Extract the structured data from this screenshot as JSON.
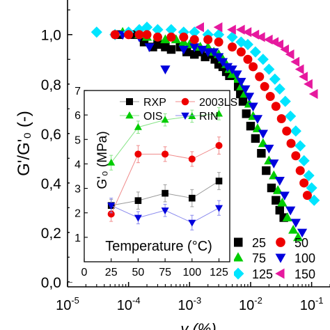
{
  "chart_data": [
    {
      "type": "scatter",
      "xlabel": "γ (%)",
      "ylabel": "G'/G'₀ (-)",
      "xscale": "log",
      "xlim": [
        1e-05,
        0.2
      ],
      "ylim": [
        -0.02,
        1.14
      ],
      "xticks": [
        1e-05,
        0.0001,
        0.001,
        0.01,
        0.1
      ],
      "xtick_labels": [
        {
          "base": "10",
          "exp": "-5"
        },
        {
          "base": "10",
          "exp": "-4"
        },
        {
          "base": "10",
          "exp": "-3"
        },
        {
          "base": "10",
          "exp": "-2"
        },
        {
          "base": "10",
          "exp": "-1"
        }
      ],
      "yticks": [
        0.0,
        0.2,
        0.4,
        0.6,
        0.8,
        1.0
      ],
      "ytick_labels": [
        "0,0",
        "0,2",
        "0,4",
        "0,6",
        "0,8",
        "1,0"
      ],
      "legend_placement": "bottom-right",
      "series": [
        {
          "name": "25",
          "marker": "square",
          "color": "#000000",
          "points": [
            [
              7e-05,
              1.0
            ],
            [
              0.00012,
              1.0
            ],
            [
              0.00018,
              0.97
            ],
            [
              0.00025,
              0.95
            ],
            [
              0.0003,
              0.96
            ],
            [
              0.0004,
              0.95
            ],
            [
              0.0005,
              0.94
            ],
            [
              0.0007,
              0.95
            ],
            [
              0.0009,
              0.93
            ],
            [
              0.0012,
              0.92
            ],
            [
              0.0015,
              0.93
            ],
            [
              0.0018,
              0.91
            ],
            [
              0.0022,
              0.92
            ],
            [
              0.0026,
              0.9
            ],
            [
              0.003,
              0.88
            ],
            [
              0.0035,
              0.87
            ],
            [
              0.004,
              0.85
            ],
            [
              0.0045,
              0.83
            ],
            [
              0.005,
              0.82
            ],
            [
              0.0055,
              0.81
            ],
            [
              0.006,
              0.79
            ],
            [
              0.0068,
              0.76
            ],
            [
              0.0075,
              0.73
            ],
            [
              0.0085,
              0.68
            ],
            [
              0.01,
              0.63
            ],
            [
              0.012,
              0.58
            ],
            [
              0.015,
              0.52
            ],
            [
              0.018,
              0.45
            ],
            [
              0.022,
              0.38
            ],
            [
              0.026,
              0.33
            ],
            [
              0.03,
              0.29
            ],
            [
              0.035,
              0.26
            ]
          ]
        },
        {
          "name": "75",
          "marker": "triangle-up",
          "color": "#00cc00",
          "points": [
            [
              8e-05,
              1.01
            ],
            [
              0.00015,
              1.0
            ],
            [
              0.0002,
              0.99
            ],
            [
              0.0003,
              0.99
            ],
            [
              0.0004,
              0.98
            ],
            [
              0.0006,
              0.98
            ],
            [
              0.0008,
              0.97
            ],
            [
              0.001,
              0.96
            ],
            [
              0.0015,
              0.95
            ],
            [
              0.002,
              0.95
            ],
            [
              0.0025,
              0.93
            ],
            [
              0.003,
              0.92
            ],
            [
              0.0035,
              0.9
            ],
            [
              0.004,
              0.88
            ],
            [
              0.0045,
              0.86
            ],
            [
              0.005,
              0.84
            ],
            [
              0.006,
              0.82
            ],
            [
              0.007,
              0.79
            ],
            [
              0.008,
              0.76
            ],
            [
              0.0095,
              0.72
            ],
            [
              0.011,
              0.67
            ],
            [
              0.013,
              0.62
            ],
            [
              0.016,
              0.56
            ],
            [
              0.02,
              0.49
            ],
            [
              0.024,
              0.43
            ],
            [
              0.028,
              0.37
            ],
            [
              0.033,
              0.32
            ],
            [
              0.04,
              0.26
            ],
            [
              0.05,
              0.21
            ],
            [
              0.06,
              0.18
            ]
          ]
        },
        {
          "name": "100",
          "marker": "triangle-down",
          "color": "#0000dd",
          "points": [
            [
              8e-05,
              1.0
            ],
            [
              0.00015,
              0.99
            ],
            [
              0.00022,
              0.95
            ],
            [
              0.0004,
              0.86
            ],
            [
              0.0008,
              0.94
            ],
            [
              0.0012,
              0.95
            ],
            [
              0.0016,
              0.94
            ],
            [
              0.002,
              0.93
            ],
            [
              0.0025,
              0.93
            ],
            [
              0.003,
              0.91
            ],
            [
              0.0035,
              0.89
            ],
            [
              0.0042,
              0.87
            ],
            [
              0.005,
              0.86
            ],
            [
              0.006,
              0.84
            ],
            [
              0.007,
              0.81
            ],
            [
              0.0082,
              0.78
            ],
            [
              0.0095,
              0.75
            ],
            [
              0.011,
              0.71
            ],
            [
              0.013,
              0.66
            ],
            [
              0.016,
              0.6
            ],
            [
              0.02,
              0.54
            ],
            [
              0.024,
              0.48
            ],
            [
              0.03,
              0.41
            ],
            [
              0.036,
              0.35
            ],
            [
              0.045,
              0.29
            ],
            [
              0.055,
              0.24
            ],
            [
              0.07,
              0.2
            ]
          ]
        },
        {
          "name": "125",
          "marker": "diamond",
          "color": "#00e5ff",
          "points": [
            [
              3e-05,
              1.01
            ],
            [
              6e-05,
              1.0
            ],
            [
              0.0001,
              1.01
            ],
            [
              0.00015,
              1.02
            ],
            [
              0.0002,
              1.03
            ],
            [
              0.0003,
              1.02
            ],
            [
              0.0005,
              1.02
            ],
            [
              0.0008,
              1.01
            ],
            [
              0.0012,
              1.01
            ],
            [
              0.002,
              1.0
            ],
            [
              0.003,
              1.0
            ],
            [
              0.005,
              0.99
            ],
            [
              0.007,
              0.97
            ],
            [
              0.009,
              0.96
            ],
            [
              0.012,
              0.93
            ],
            [
              0.016,
              0.9
            ],
            [
              0.02,
              0.86
            ],
            [
              0.025,
              0.82
            ],
            [
              0.03,
              0.78
            ],
            [
              0.037,
              0.73
            ],
            [
              0.045,
              0.67
            ],
            [
              0.055,
              0.61
            ],
            [
              0.065,
              0.55
            ],
            [
              0.075,
              0.49
            ],
            [
              0.09,
              0.43
            ],
            [
              0.1,
              0.38
            ],
            [
              0.11,
              0.33
            ]
          ]
        },
        {
          "name": "50",
          "marker": "circle",
          "color": "#ee0000",
          "points": [
            [
              6e-05,
              1.0
            ],
            [
              0.0001,
              1.0
            ],
            [
              0.00015,
              1.0
            ],
            [
              0.0002,
              1.0
            ],
            [
              0.0003,
              0.99
            ],
            [
              0.0005,
              0.99
            ],
            [
              0.0008,
              0.99
            ],
            [
              0.0012,
              0.98
            ],
            [
              0.002,
              0.98
            ],
            [
              0.003,
              0.97
            ],
            [
              0.005,
              0.95
            ],
            [
              0.007,
              0.93
            ],
            [
              0.009,
              0.9
            ],
            [
              0.011,
              0.87
            ],
            [
              0.014,
              0.83
            ],
            [
              0.017,
              0.79
            ],
            [
              0.021,
              0.75
            ],
            [
              0.026,
              0.71
            ],
            [
              0.032,
              0.66
            ],
            [
              0.039,
              0.61
            ],
            [
              0.046,
              0.56
            ],
            [
              0.055,
              0.51
            ],
            [
              0.065,
              0.45
            ],
            [
              0.075,
              0.4
            ],
            [
              0.085,
              0.35
            ]
          ]
        },
        {
          "name": "150",
          "marker": "triangle-left",
          "color": "#e6199e",
          "points": [
            [
              0.0015,
              1.03
            ],
            [
              0.003,
              1.03
            ],
            [
              0.005,
              1.02
            ],
            [
              0.007,
              1.02
            ],
            [
              0.009,
              1.01
            ],
            [
              0.012,
              1.0
            ],
            [
              0.015,
              0.99
            ],
            [
              0.02,
              0.98
            ],
            [
              0.025,
              0.97
            ],
            [
              0.03,
              0.96
            ],
            [
              0.037,
              0.94
            ],
            [
              0.045,
              0.92
            ],
            [
              0.055,
              0.89
            ],
            [
              0.065,
              0.86
            ],
            [
              0.075,
              0.83
            ],
            [
              0.09,
              0.8
            ],
            [
              0.11,
              0.76
            ]
          ]
        }
      ]
    },
    {
      "type": "line",
      "ylabel": "G'₀ (MPa)",
      "xlabel": "Temperature (°C)",
      "xlim": [
        0,
        135
      ],
      "ylim": [
        0,
        7
      ],
      "xticks": [
        0,
        25,
        50,
        75,
        100,
        125
      ],
      "xtick_labels": [
        "0",
        "25",
        "50",
        "75",
        "100",
        "125"
      ],
      "yticks": [
        1,
        2,
        3,
        4,
        5,
        6,
        7
      ],
      "ytick_labels": [
        "1",
        "2",
        "3",
        "4",
        "5",
        "6",
        "7"
      ],
      "legend_placement": "top",
      "series": [
        {
          "name": "RXP",
          "marker": "square",
          "color": "#000000",
          "points": [
            [
              25,
              2.3
            ],
            [
              50,
              2.5
            ],
            [
              75,
              2.8
            ],
            [
              100,
              2.6
            ],
            [
              125,
              3.3
            ]
          ],
          "errors": [
            0.25,
            0.35,
            0.35,
            0.35,
            0.35
          ]
        },
        {
          "name": "2003LS",
          "marker": "circle",
          "color": "#ee0000",
          "points": [
            [
              25,
              1.95
            ],
            [
              50,
              4.4
            ],
            [
              75,
              4.4
            ],
            [
              100,
              4.2
            ],
            [
              125,
              4.75
            ]
          ],
          "errors": [
            0.3,
            0.35,
            0.3,
            0.3,
            0.35
          ]
        },
        {
          "name": "OIS",
          "marker": "triangle-up",
          "color": "#00cc00",
          "points": [
            [
              25,
              4.05
            ],
            [
              50,
              5.5
            ],
            [
              75,
              5.8
            ],
            [
              100,
              5.95
            ],
            [
              125,
              6.05
            ]
          ],
          "errors": [
            0.3,
            0.25,
            0.25,
            0.25,
            0.25
          ]
        },
        {
          "name": "RIN",
          "marker": "triangle-down",
          "color": "#0000dd",
          "points": [
            [
              25,
              2.3
            ],
            [
              50,
              1.8
            ],
            [
              75,
              2.1
            ],
            [
              100,
              1.6
            ],
            [
              125,
              2.2
            ]
          ],
          "errors": [
            0.3,
            0.25,
            0.25,
            0.3,
            0.3
          ]
        }
      ]
    }
  ]
}
